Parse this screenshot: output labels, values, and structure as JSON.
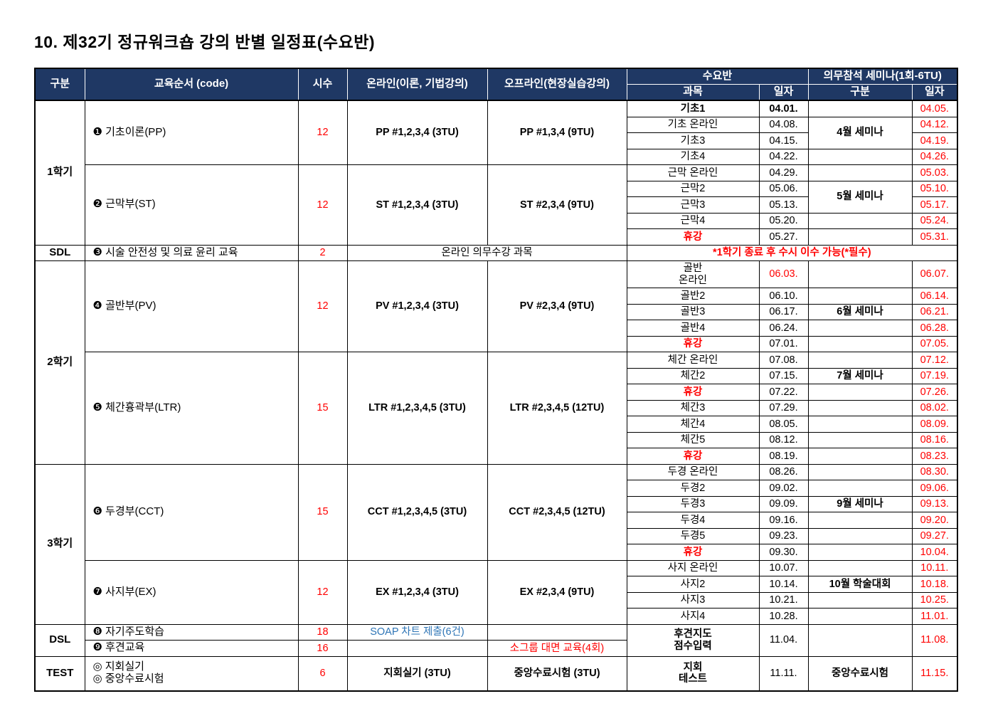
{
  "title": "10. 제32기 정규워크숍 강의 반별 일정표(수요반)",
  "colors": {
    "header_bg": "#1f3864",
    "header_text": "#ffffff",
    "red_text": "#ff0000",
    "blue_text": "#2e75b6",
    "body_text": "#000000"
  },
  "table": {
    "rows": [
      {
        "head": true,
        "cells": [
          {
            "t": "구분",
            "rs": 2,
            "n": "header-gubun"
          },
          {
            "t": "교육순서 (code)",
            "rs": 2,
            "n": "header-course-order"
          },
          {
            "t": "시수",
            "rs": 2,
            "n": "header-hours"
          },
          {
            "t": "온라인(이론, 기법강의)",
            "rs": 2,
            "n": "header-online"
          },
          {
            "t": "오프라인(현장실습강의)",
            "rs": 2,
            "n": "header-offline"
          },
          {
            "t": "수요반",
            "cs": 2,
            "n": "header-wed-class"
          },
          {
            "t": "의무참석 세미나(1회-6TU)",
            "cs": 2,
            "n": "header-seminar"
          }
        ]
      },
      {
        "head": true,
        "cells": [
          {
            "t": "과목",
            "n": "header-subject"
          },
          {
            "t": "일자",
            "n": "header-date"
          },
          {
            "t": "구분",
            "n": "header-sem-gubun"
          },
          {
            "t": "일자",
            "n": "header-sem-date"
          }
        ]
      },
      {
        "cells": [
          {
            "t": "1학기",
            "rs": 9,
            "cls": "sec"
          },
          {
            "t": "❶ 기초이론(PP)",
            "rs": 4,
            "cls": "course"
          },
          {
            "t": "12",
            "rs": 4,
            "cls": "red"
          },
          {
            "t": "PP #1,2,3,4 (3TU)",
            "rs": 4,
            "cls": "bold"
          },
          {
            "t": "PP #1,3,4 (9TU)",
            "rs": 4,
            "cls": "bold"
          },
          {
            "t": "기초1",
            "cls": "bold"
          },
          {
            "t": "04.01.",
            "cls": "bold"
          },
          {
            "t": ""
          },
          {
            "t": "04.05.",
            "cls": "red"
          }
        ]
      },
      {
        "cells": [
          {
            "t": "기초 온라인"
          },
          {
            "t": "04.08."
          },
          {
            "t": "4월 세미나",
            "rs": 2,
            "cls": "bold"
          },
          {
            "t": "04.12.",
            "cls": "red"
          }
        ]
      },
      {
        "cells": [
          {
            "t": "기초3"
          },
          {
            "t": "04.15."
          },
          {
            "t": "04.19.",
            "cls": "red"
          }
        ]
      },
      {
        "cells": [
          {
            "t": "기초4"
          },
          {
            "t": "04.22."
          },
          {
            "t": ""
          },
          {
            "t": "04.26.",
            "cls": "red"
          }
        ]
      },
      {
        "cells": [
          {
            "t": "❷ 근막부(ST)",
            "rs": 5,
            "cls": "course"
          },
          {
            "t": "12",
            "rs": 5,
            "cls": "red"
          },
          {
            "t": "ST #1,2,3,4 (3TU)",
            "rs": 5,
            "cls": "bold"
          },
          {
            "t": "ST #2,3,4 (9TU)",
            "rs": 5,
            "cls": "bold"
          },
          {
            "t": "근막 온라인"
          },
          {
            "t": "04.29."
          },
          {
            "t": ""
          },
          {
            "t": "05.03.",
            "cls": "red"
          }
        ]
      },
      {
        "cells": [
          {
            "t": "근막2"
          },
          {
            "t": "05.06."
          },
          {
            "t": "5월 세미나",
            "rs": 2,
            "cls": "bold"
          },
          {
            "t": "05.10.",
            "cls": "red"
          }
        ]
      },
      {
        "cells": [
          {
            "t": "근막3"
          },
          {
            "t": "05.13."
          },
          {
            "t": "05.17.",
            "cls": "red"
          }
        ]
      },
      {
        "cells": [
          {
            "t": "근막4"
          },
          {
            "t": "05.20."
          },
          {
            "t": ""
          },
          {
            "t": "05.24.",
            "cls": "red"
          }
        ]
      },
      {
        "cells": [
          {
            "t": "휴강",
            "cls": "red bold"
          },
          {
            "t": "05.27."
          },
          {
            "t": ""
          },
          {
            "t": "05.31.",
            "cls": "red"
          }
        ]
      },
      {
        "cells": [
          {
            "t": "SDL",
            "cls": "sec"
          },
          {
            "t": "❸ 시술 안전성 및 의료 윤리 교육",
            "cls": "course"
          },
          {
            "t": "2",
            "cls": "red"
          },
          {
            "t": "온라인 의무수강 과목",
            "cs": 2
          },
          {
            "t": "*1학기 종료 후 수시 이수 가능(*필수)",
            "cs": 4,
            "cls": "red bold"
          }
        ]
      },
      {
        "cls": "tall",
        "cells": [
          {
            "t": "2학기",
            "rs": 12,
            "cls": "sec"
          },
          {
            "t": "❹ 골반부(PV)",
            "rs": 5,
            "cls": "course"
          },
          {
            "t": "12",
            "rs": 5,
            "cls": "red"
          },
          {
            "t": "PV #1,2,3,4 (3TU)",
            "rs": 5,
            "cls": "bold"
          },
          {
            "t": "PV #2,3,4 (9TU)",
            "rs": 5,
            "cls": "bold"
          },
          {
            "t": "골반\n온라인"
          },
          {
            "t": "06.03.",
            "cls": "red"
          },
          {
            "t": ""
          },
          {
            "t": "06.07.",
            "cls": "red"
          }
        ]
      },
      {
        "cells": [
          {
            "t": "골반2"
          },
          {
            "t": "06.10."
          },
          {
            "t": ""
          },
          {
            "t": "06.14.",
            "cls": "red"
          }
        ]
      },
      {
        "cells": [
          {
            "t": "골반3"
          },
          {
            "t": "06.17."
          },
          {
            "t": "6월 세미나",
            "cls": "bold"
          },
          {
            "t": "06.21.",
            "cls": "red"
          }
        ]
      },
      {
        "cells": [
          {
            "t": "골반4"
          },
          {
            "t": "06.24."
          },
          {
            "t": ""
          },
          {
            "t": "06.28.",
            "cls": "red"
          }
        ]
      },
      {
        "cells": [
          {
            "t": "휴강",
            "cls": "red bold"
          },
          {
            "t": "07.01."
          },
          {
            "t": ""
          },
          {
            "t": "07.05.",
            "cls": "red"
          }
        ]
      },
      {
        "cells": [
          {
            "t": "❺ 체간흉곽부(LTR)",
            "rs": 7,
            "cls": "course"
          },
          {
            "t": "15",
            "rs": 7,
            "cls": "red"
          },
          {
            "t": "LTR #1,2,3,4,5 (3TU)",
            "rs": 7,
            "cls": "bold"
          },
          {
            "t": "LTR #2,3,4,5 (12TU)",
            "rs": 7,
            "cls": "bold"
          },
          {
            "t": "체간 온라인"
          },
          {
            "t": "07.08."
          },
          {
            "t": ""
          },
          {
            "t": "07.12.",
            "cls": "red"
          }
        ]
      },
      {
        "cells": [
          {
            "t": "체간2"
          },
          {
            "t": "07.15."
          },
          {
            "t": "7월 세미나",
            "cls": "bold"
          },
          {
            "t": "07.19.",
            "cls": "red"
          }
        ]
      },
      {
        "cells": [
          {
            "t": "휴강",
            "cls": "red bold"
          },
          {
            "t": "07.22."
          },
          {
            "t": ""
          },
          {
            "t": "07.26.",
            "cls": "red"
          }
        ]
      },
      {
        "cells": [
          {
            "t": "체간3"
          },
          {
            "t": "07.29."
          },
          {
            "t": ""
          },
          {
            "t": "08.02.",
            "cls": "red"
          }
        ]
      },
      {
        "cells": [
          {
            "t": "체간4"
          },
          {
            "t": "08.05."
          },
          {
            "t": ""
          },
          {
            "t": "08.09.",
            "cls": "red"
          }
        ]
      },
      {
        "cells": [
          {
            "t": "체간5"
          },
          {
            "t": "08.12."
          },
          {
            "t": ""
          },
          {
            "t": "08.16.",
            "cls": "red"
          }
        ]
      },
      {
        "cells": [
          {
            "t": "휴강",
            "cls": "red bold"
          },
          {
            "t": "08.19."
          },
          {
            "t": ""
          },
          {
            "t": "08.23.",
            "cls": "red"
          }
        ]
      },
      {
        "cells": [
          {
            "t": "3학기",
            "rs": 10,
            "cls": "sec"
          },
          {
            "t": "❻ 두경부(CCT)",
            "rs": 6,
            "cls": "course"
          },
          {
            "t": "15",
            "rs": 6,
            "cls": "red"
          },
          {
            "t": "CCT #1,2,3,4,5 (3TU)",
            "rs": 6,
            "cls": "bold"
          },
          {
            "t": "CCT #2,3,4,5 (12TU)",
            "rs": 6,
            "cls": "bold"
          },
          {
            "t": "두경 온라인"
          },
          {
            "t": "08.26."
          },
          {
            "t": ""
          },
          {
            "t": "08.30.",
            "cls": "red"
          }
        ]
      },
      {
        "cells": [
          {
            "t": "두경2"
          },
          {
            "t": "09.02."
          },
          {
            "t": ""
          },
          {
            "t": "09.06.",
            "cls": "red"
          }
        ]
      },
      {
        "cells": [
          {
            "t": "두경3"
          },
          {
            "t": "09.09."
          },
          {
            "t": "9월 세미나",
            "cls": "bold"
          },
          {
            "t": "09.13.",
            "cls": "red"
          }
        ]
      },
      {
        "cells": [
          {
            "t": "두경4"
          },
          {
            "t": "09.16."
          },
          {
            "t": ""
          },
          {
            "t": "09.20.",
            "cls": "red"
          }
        ]
      },
      {
        "cells": [
          {
            "t": "두경5"
          },
          {
            "t": "09.23."
          },
          {
            "t": ""
          },
          {
            "t": "09.27.",
            "cls": "red"
          }
        ]
      },
      {
        "cells": [
          {
            "t": "휴강",
            "cls": "red bold"
          },
          {
            "t": "09.30."
          },
          {
            "t": ""
          },
          {
            "t": "10.04.",
            "cls": "red"
          }
        ]
      },
      {
        "cells": [
          {
            "t": "❼ 사지부(EX)",
            "rs": 4,
            "cls": "course"
          },
          {
            "t": "12",
            "rs": 4,
            "cls": "red"
          },
          {
            "t": "EX #1,2,3,4 (3TU)",
            "rs": 4,
            "cls": "bold"
          },
          {
            "t": "EX #2,3,4 (9TU)",
            "rs": 4,
            "cls": "bold"
          },
          {
            "t": "사지 온라인"
          },
          {
            "t": "10.07."
          },
          {
            "t": ""
          },
          {
            "t": "10.11.",
            "cls": "red"
          }
        ]
      },
      {
        "cells": [
          {
            "t": "사지2"
          },
          {
            "t": "10.14."
          },
          {
            "t": "10월 학술대회",
            "cls": "bold"
          },
          {
            "t": "10.18.",
            "cls": "red"
          }
        ]
      },
      {
        "cells": [
          {
            "t": "사지3"
          },
          {
            "t": "10.21."
          },
          {
            "t": ""
          },
          {
            "t": "10.25.",
            "cls": "red"
          }
        ]
      },
      {
        "cells": [
          {
            "t": "사지4"
          },
          {
            "t": "10.28."
          },
          {
            "t": ""
          },
          {
            "t": "11.01.",
            "cls": "red"
          }
        ]
      },
      {
        "cells": [
          {
            "t": "DSL",
            "rs": 2,
            "cls": "sec"
          },
          {
            "t": "❽ 자기주도학습",
            "cls": "course"
          },
          {
            "t": "18",
            "cls": "red"
          },
          {
            "t": "SOAP 차트 제출(6건)",
            "cls": "blue"
          },
          {
            "t": ""
          },
          {
            "t": "후견지도\n점수입력",
            "rs": 2,
            "cls": "bold"
          },
          {
            "t": "11.04.",
            "rs": 2
          },
          {
            "t": "",
            "rs": 2
          },
          {
            "t": "11.08.",
            "rs": 2,
            "cls": "red"
          }
        ]
      },
      {
        "cells": [
          {
            "t": "❾ 후견교육",
            "cls": "course"
          },
          {
            "t": "16",
            "cls": "red"
          },
          {
            "t": ""
          },
          {
            "t": "소그룹 대면 교육(4회)",
            "cls": "red"
          }
        ]
      },
      {
        "cls": "xtall",
        "cells": [
          {
            "t": "TEST",
            "cls": "sec"
          },
          {
            "t": "◎ 지회실기\n◎ 중앙수료시험",
            "cls": "course"
          },
          {
            "t": "6",
            "cls": "red"
          },
          {
            "t": "지회실기 (3TU)",
            "cls": "bold"
          },
          {
            "t": "중앙수료시험 (3TU)",
            "cls": "bold"
          },
          {
            "t": "지회\n테스트",
            "cls": "bold"
          },
          {
            "t": "11.11."
          },
          {
            "t": "중앙수료시험",
            "cls": "bold"
          },
          {
            "t": "11.15.",
            "cls": "red"
          }
        ]
      }
    ]
  }
}
